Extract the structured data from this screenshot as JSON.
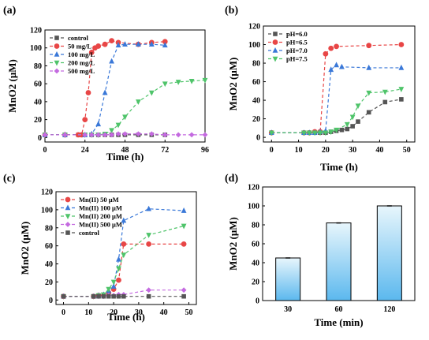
{
  "chart_data": [
    {
      "panel_label": "(a)",
      "type": "line",
      "xlabel": "Time (h)",
      "ylabel": "MnO2 (μM)",
      "xlim": [
        0,
        96
      ],
      "ylim": [
        -5,
        120
      ],
      "xticks": [
        0,
        24,
        48,
        72,
        96
      ],
      "yticks": [
        0,
        20,
        40,
        60,
        80,
        100,
        120
      ],
      "legend_position": "top-left",
      "series": [
        {
          "name": "control",
          "color": "#555555",
          "marker": "square",
          "x": [
            0,
            12,
            20,
            24,
            28,
            32,
            36,
            40,
            44,
            48,
            56,
            64,
            72
          ],
          "y": [
            3,
            3,
            3,
            3,
            3,
            3,
            3,
            3,
            3,
            3,
            3,
            3,
            3
          ]
        },
        {
          "name": "50 mg/L",
          "color": "#e84646",
          "marker": "circle",
          "x": [
            0,
            12,
            20,
            22,
            24,
            26,
            28,
            30,
            32,
            36,
            40,
            44,
            56,
            64,
            72
          ],
          "y": [
            3,
            3,
            3,
            3,
            20,
            50,
            95,
            100,
            102,
            104,
            108,
            106,
            104,
            106,
            107
          ]
        },
        {
          "name": "100 mg/L",
          "color": "#3a78d8",
          "marker": "triangle-up",
          "x": [
            0,
            12,
            24,
            28,
            32,
            36,
            40,
            44,
            48,
            56,
            64,
            72
          ],
          "y": [
            3,
            3,
            3,
            4,
            15,
            50,
            85,
            103,
            104,
            104,
            104,
            103
          ]
        },
        {
          "name": "200 mg/L",
          "color": "#4fc46a",
          "marker": "triangle-down",
          "x": [
            0,
            12,
            24,
            28,
            32,
            36,
            40,
            44,
            48,
            56,
            64,
            72,
            80,
            88,
            96
          ],
          "y": [
            3,
            3,
            3,
            3,
            3,
            4,
            8,
            14,
            23,
            40,
            50,
            60,
            62,
            63,
            64
          ]
        },
        {
          "name": "500 mg/L",
          "color": "#c46ae0",
          "marker": "diamond",
          "x": [
            0,
            12,
            24,
            28,
            32,
            36,
            40,
            44,
            48,
            56,
            64,
            72,
            80,
            88,
            96
          ],
          "y": [
            3,
            3,
            3,
            3,
            3,
            3,
            3,
            4,
            4,
            4,
            4,
            3,
            3,
            3,
            3
          ]
        }
      ]
    },
    {
      "panel_label": "(b)",
      "type": "line",
      "xlabel": "Time (h)",
      "ylabel": "MnO2 (μM)",
      "xlim": [
        -3,
        53
      ],
      "ylim": [
        -5,
        120
      ],
      "xticks": [
        0,
        10,
        20,
        30,
        40,
        50
      ],
      "yticks": [
        0,
        20,
        40,
        60,
        80,
        100,
        120
      ],
      "legend_position": "top-left",
      "series": [
        {
          "name": "pH=6.0",
          "color": "#555555",
          "marker": "square",
          "x": [
            0,
            12,
            14,
            16,
            18,
            20,
            22,
            24,
            26,
            28,
            30,
            32,
            36,
            42,
            48
          ],
          "y": [
            5,
            5,
            5,
            5,
            5,
            5,
            6,
            7,
            8,
            9,
            12,
            17,
            27,
            38,
            41
          ]
        },
        {
          "name": "pH=6.5",
          "color": "#e84646",
          "marker": "circle",
          "x": [
            0,
            12,
            14,
            16,
            18,
            20,
            22,
            24,
            36,
            48
          ],
          "y": [
            5,
            5,
            5,
            6,
            6,
            90,
            96,
            98,
            99,
            100
          ]
        },
        {
          "name": "pH=7.0",
          "color": "#3a78d8",
          "marker": "triangle-up",
          "x": [
            0,
            12,
            14,
            16,
            18,
            20,
            22,
            24,
            26,
            36,
            48
          ],
          "y": [
            5,
            5,
            5,
            5,
            6,
            7,
            73,
            78,
            76,
            75,
            75
          ]
        },
        {
          "name": "pH=7.5",
          "color": "#4fc46a",
          "marker": "triangle-down",
          "x": [
            0,
            12,
            14,
            16,
            18,
            20,
            22,
            24,
            28,
            30,
            32,
            36,
            42,
            48
          ],
          "y": [
            5,
            5,
            5,
            5,
            5,
            5,
            6,
            8,
            14,
            22,
            34,
            48,
            49,
            52
          ]
        }
      ]
    },
    {
      "panel_label": "(c)",
      "type": "line",
      "xlabel": "Time (h)",
      "ylabel": "MnO2 (μM)",
      "xlim": [
        -3,
        53
      ],
      "ylim": [
        -5,
        120
      ],
      "xticks": [
        0,
        10,
        20,
        30,
        40,
        50
      ],
      "yticks": [
        0,
        20,
        40,
        60,
        80,
        100,
        120
      ],
      "legend_position": "top-left",
      "series": [
        {
          "name": "Mn(II) 50 μM",
          "color": "#e84646",
          "marker": "circle",
          "x": [
            0,
            12,
            14,
            16,
            18,
            20,
            22,
            24,
            34,
            48
          ],
          "y": [
            4,
            4,
            5,
            5,
            8,
            12,
            22,
            62,
            62,
            62
          ]
        },
        {
          "name": "Mn(II) 100 μM",
          "color": "#3a78d8",
          "marker": "triangle-up",
          "x": [
            0,
            12,
            14,
            16,
            18,
            20,
            22,
            24,
            34,
            48
          ],
          "y": [
            4,
            4,
            5,
            6,
            10,
            15,
            45,
            88,
            101,
            99
          ]
        },
        {
          "name": "Mn(II) 200 μM",
          "color": "#4fc46a",
          "marker": "triangle-down",
          "x": [
            0,
            12,
            14,
            16,
            18,
            20,
            22,
            24,
            34,
            48
          ],
          "y": [
            4,
            4,
            5,
            6,
            12,
            20,
            35,
            50,
            72,
            82
          ]
        },
        {
          "name": "Mn(II) 500 μM",
          "color": "#c46ae0",
          "marker": "diamond",
          "x": [
            0,
            12,
            14,
            16,
            18,
            20,
            22,
            24,
            34,
            48
          ],
          "y": [
            4,
            4,
            4,
            4,
            5,
            5,
            6,
            6,
            11,
            11
          ]
        },
        {
          "name": "control",
          "color": "#555555",
          "marker": "square",
          "x": [
            0,
            12,
            14,
            16,
            18,
            20,
            22,
            24,
            34,
            48
          ],
          "y": [
            4,
            4,
            4,
            4,
            4,
            4,
            4,
            4,
            4,
            4
          ]
        }
      ]
    },
    {
      "panel_label": "(d)",
      "type": "bar",
      "xlabel": "Time (min)",
      "ylabel": "MnO2 (μM)",
      "ylim": [
        0,
        120
      ],
      "yticks": [
        0,
        20,
        40,
        60,
        80,
        100,
        120
      ],
      "categories": [
        "30",
        "60",
        "120"
      ],
      "values": [
        45,
        82,
        100
      ],
      "bar_gradient": [
        "#e8f6fc",
        "#5bb8ee"
      ]
    }
  ]
}
